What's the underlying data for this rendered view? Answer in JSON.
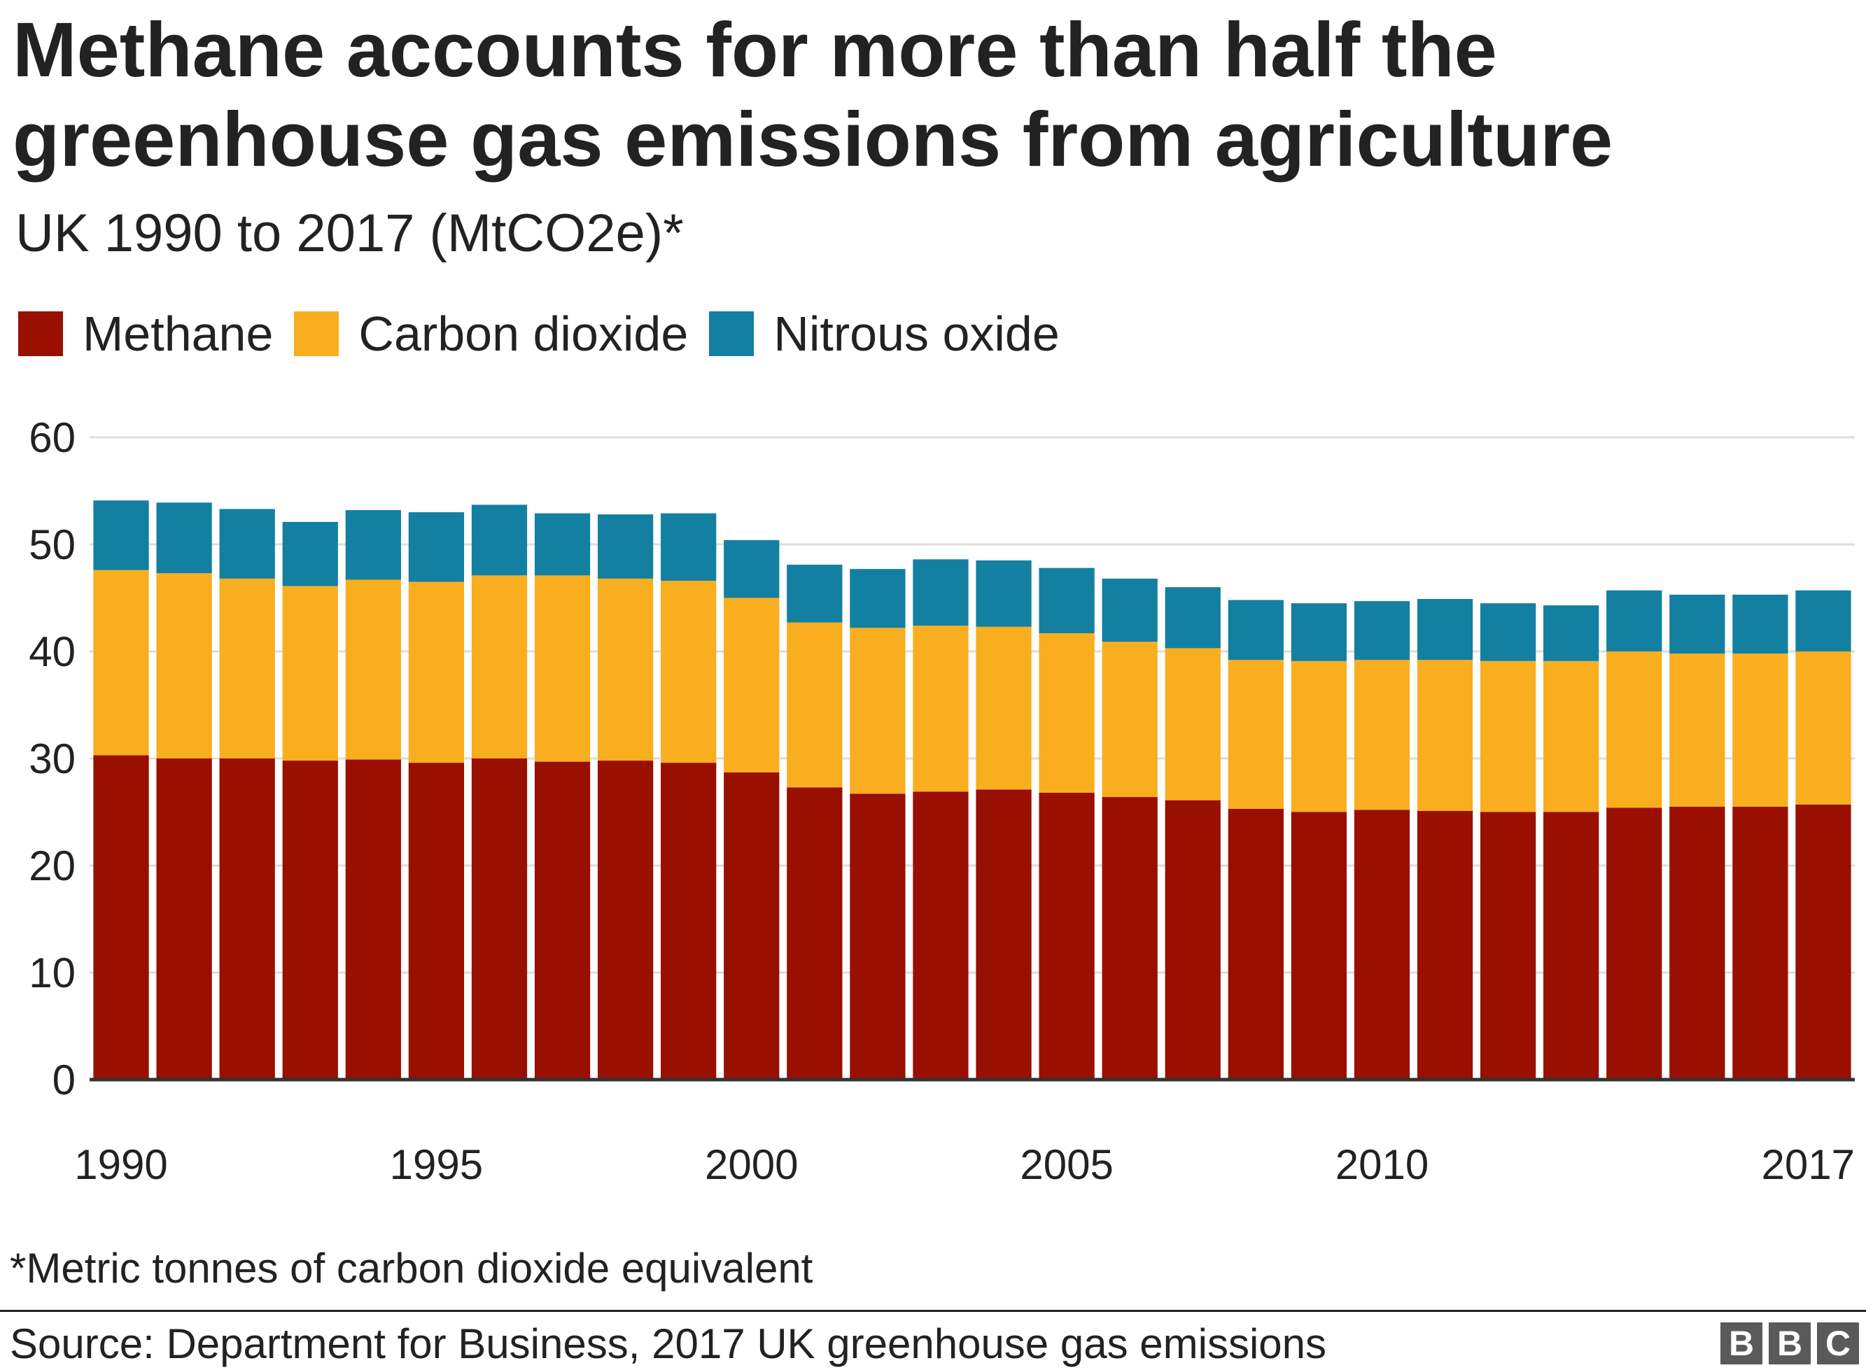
{
  "chart_data": {
    "type": "bar",
    "stacked": true,
    "title": "Methane accounts for more than half the greenhouse gas emissions from agriculture",
    "subtitle": "UK 1990 to 2017 (MtCO2e)*",
    "xlabel": "",
    "ylabel": "",
    "ylim": [
      0,
      60
    ],
    "yticks": [
      0,
      10,
      20,
      30,
      40,
      50,
      60
    ],
    "grid": true,
    "legend_position": "top-left",
    "categories": [
      1990,
      1991,
      1992,
      1993,
      1994,
      1995,
      1996,
      1997,
      1998,
      1999,
      2000,
      2001,
      2002,
      2003,
      2004,
      2005,
      2006,
      2007,
      2008,
      2009,
      2010,
      2011,
      2012,
      2013,
      2014,
      2015,
      2016,
      2017
    ],
    "xtick_labels": [
      {
        "category": 1990,
        "label": "1990"
      },
      {
        "category": 1995,
        "label": "1995"
      },
      {
        "category": 2000,
        "label": "2000"
      },
      {
        "category": 2005,
        "label": "2005"
      },
      {
        "category": 2010,
        "label": "2010"
      },
      {
        "category": 2017,
        "label": "2017"
      }
    ],
    "series": [
      {
        "name": "Methane",
        "color": "#990f00",
        "values": [
          30.3,
          30.0,
          30.0,
          29.8,
          29.9,
          29.6,
          30.0,
          29.7,
          29.8,
          29.6,
          28.7,
          27.3,
          26.7,
          26.9,
          27.1,
          26.8,
          26.4,
          26.1,
          25.3,
          25.0,
          25.2,
          25.1,
          25.0,
          25.0,
          25.4,
          25.5,
          25.5,
          25.7
        ]
      },
      {
        "name": "Carbon dioxide",
        "color": "#f9ae1f",
        "values": [
          17.3,
          17.3,
          16.8,
          16.3,
          16.8,
          16.9,
          17.1,
          17.4,
          17.0,
          17.0,
          16.3,
          15.4,
          15.5,
          15.5,
          15.2,
          14.9,
          14.5,
          14.2,
          13.9,
          14.1,
          14.0,
          14.1,
          14.1,
          14.1,
          14.6,
          14.3,
          14.3,
          14.3
        ]
      },
      {
        "name": "Nitrous oxide",
        "color": "#1380a1",
        "values": [
          6.5,
          6.6,
          6.5,
          6.0,
          6.5,
          6.5,
          6.6,
          5.8,
          6.0,
          6.3,
          5.4,
          5.4,
          5.5,
          6.2,
          6.2,
          6.1,
          5.9,
          5.7,
          5.6,
          5.4,
          5.5,
          5.7,
          5.4,
          5.2,
          5.7,
          5.5,
          5.5,
          5.7
        ]
      }
    ]
  },
  "footnote": "*Metric tonnes of carbon dioxide equivalent",
  "source": "Source: Department for Business, 2017 UK greenhouse gas emissions",
  "logo": [
    "B",
    "B",
    "C"
  ],
  "colors": {
    "text": "#222222",
    "gridline": "#dddddd",
    "axis": "#333333",
    "logo_bg": "#5a5a5a"
  }
}
